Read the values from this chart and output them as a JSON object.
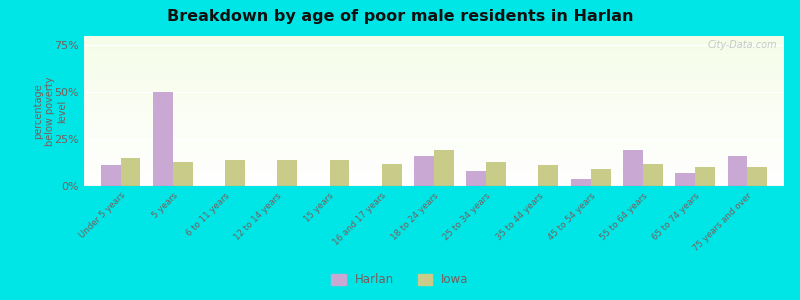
{
  "title": "Breakdown by age of poor male residents in Harlan",
  "categories": [
    "Under 5 years",
    "5 years",
    "6 to 11 years",
    "12 to 14 years",
    "15 years",
    "16 and 17 years",
    "18 to 24 years",
    "25 to 34 years",
    "35 to 44 years",
    "45 to 54 years",
    "55 to 64 years",
    "65 to 74 years",
    "75 years and over"
  ],
  "harlan_values": [
    11,
    50,
    0,
    0,
    0,
    0,
    16,
    8,
    0,
    4,
    19,
    7,
    16
  ],
  "iowa_values": [
    15,
    13,
    14,
    14,
    14,
    12,
    19,
    13,
    11,
    9,
    12,
    10,
    10
  ],
  "ylabel": "percentage\nbelow poverty\nlevel",
  "ylim": [
    0,
    80
  ],
  "yticks": [
    0,
    25,
    50,
    75
  ],
  "ytick_labels": [
    "0%",
    "25%",
    "50%",
    "75%"
  ],
  "harlan_color": "#c9a8d4",
  "iowa_color": "#c8cc88",
  "outer_bg": "#00e5e5",
  "axis_color": "#7a5c5c",
  "bar_width": 0.38,
  "legend_harlan": "Harlan",
  "legend_iowa": "Iowa",
  "watermark": "City-Data.com"
}
